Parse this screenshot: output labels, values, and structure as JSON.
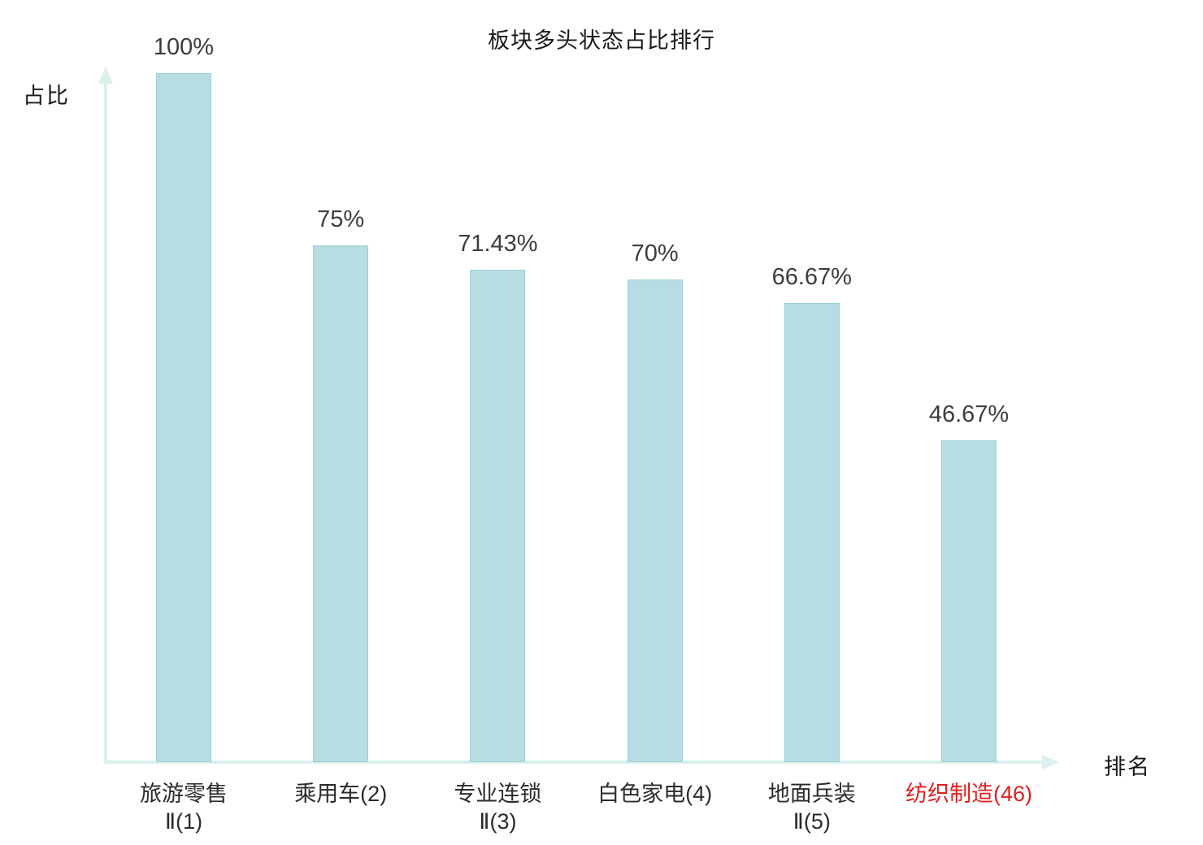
{
  "chart_data": {
    "type": "bar",
    "title": "板块多头状态占比排行",
    "xlabel": "排名",
    "ylabel": "占比",
    "ylim": [
      0,
      100
    ],
    "grid": false,
    "legend": "none",
    "categories": [
      {
        "label_lines": [
          "旅游零售",
          "Ⅱ(1)"
        ],
        "highlight": false
      },
      {
        "label_lines": [
          "乘用车(2)"
        ],
        "highlight": false
      },
      {
        "label_lines": [
          "专业连锁",
          "Ⅱ(3)"
        ],
        "highlight": false
      },
      {
        "label_lines": [
          "白色家电(4)"
        ],
        "highlight": false
      },
      {
        "label_lines": [
          "地面兵装",
          "Ⅱ(5)"
        ],
        "highlight": false
      },
      {
        "label_lines": [
          "纺织制造(46)"
        ],
        "highlight": true
      }
    ],
    "values": [
      100,
      75,
      71.43,
      70,
      66.67,
      46.67
    ],
    "value_labels": [
      "100%",
      "75%",
      "71.43%",
      "70%",
      "66.67%",
      "46.67%"
    ],
    "bar_fill_color": "#b7dde3",
    "bar_border_color": "#9ccfd7",
    "axis_color": "#d9f0ec",
    "value_label_color": "#3d3d3d",
    "category_label_color": "#2b2b2b",
    "highlight_color": "#e02020",
    "background_color": "#ffffff"
  }
}
